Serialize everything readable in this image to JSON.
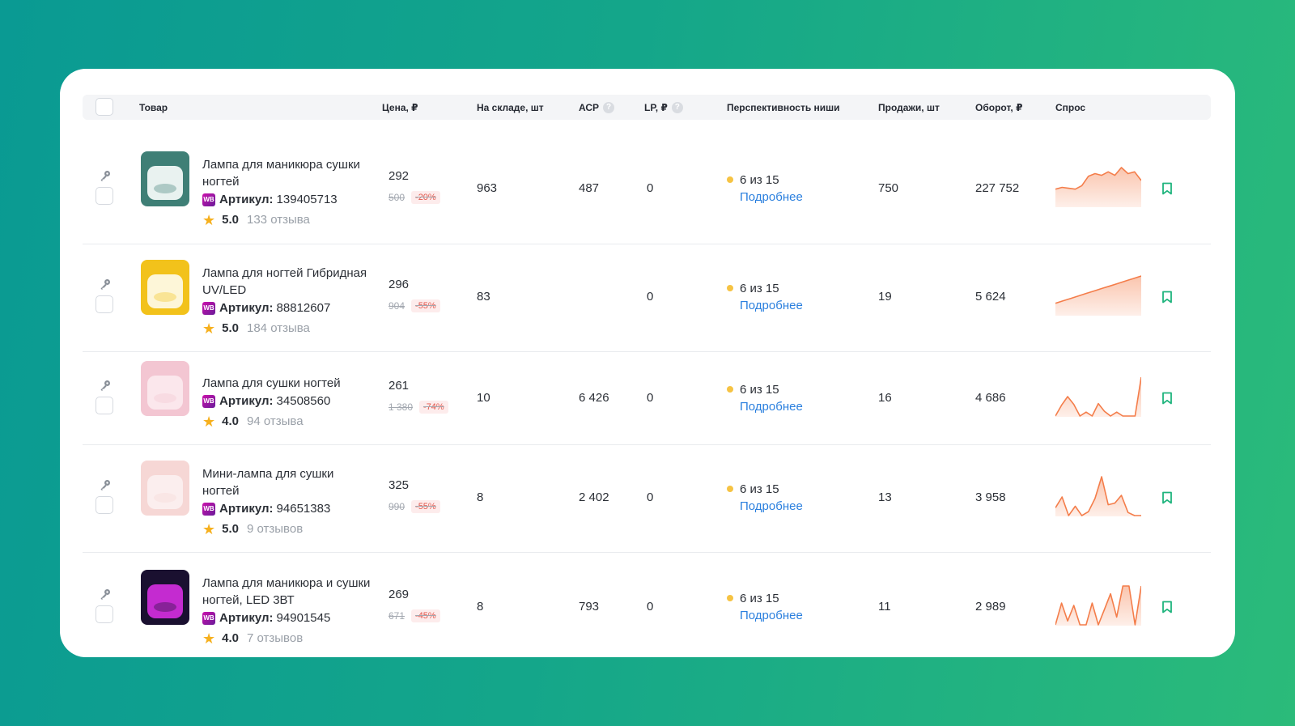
{
  "table": {
    "columns": {
      "product": "Товар",
      "price": "Цена, ₽",
      "stock": "На складе, шт",
      "acp": "АСР",
      "lp": "LP, ₽",
      "niche": "Перспективность ниши",
      "sales": "Продажи, шт",
      "turnover": "Оборот, ₽",
      "demand": "Спрос"
    },
    "help_glyph": "?",
    "wb_badge": "WB",
    "article_label": "Артикул:",
    "more_label": "Подробнее",
    "rows": [
      {
        "name": "Лампа для маникюра сушки ногтей",
        "article": "139405713",
        "rating": "5.0",
        "reviews": "133 отзыва",
        "price": "292",
        "old_price": "500",
        "discount": "-20%",
        "stock": "963",
        "acp": "487",
        "lp": "0",
        "niche": "6 из 15",
        "sales": "750",
        "turnover": "227 752",
        "demand": [
          20,
          22,
          21,
          20,
          24,
          35,
          38,
          36,
          40,
          36,
          45,
          38,
          40,
          30
        ]
      },
      {
        "name": "Лампа для ногтей Гибридная UV/LED",
        "article": "88812607",
        "rating": "5.0",
        "reviews": "184 отзыва",
        "price": "296",
        "old_price": "904",
        "discount": "-55%",
        "stock": "83",
        "acp": "",
        "lp": "0",
        "niche": "6 из 15",
        "sales": "19",
        "turnover": "5 624",
        "demand": [
          14,
          17,
          20,
          23,
          26,
          29,
          32,
          35,
          38,
          41,
          44,
          47
        ]
      },
      {
        "name": "Лампа для сушки ногтей",
        "article": "34508560",
        "rating": "4.0",
        "reviews": "94 отзыва",
        "price": "261",
        "old_price": "1 380",
        "discount": "-74%",
        "stock": "10",
        "acp": "6 426",
        "lp": "0",
        "niche": "6 из 15",
        "sales": "16",
        "turnover": "4 686",
        "demand": [
          0,
          14,
          25,
          15,
          0,
          5,
          0,
          16,
          6,
          0,
          5,
          0,
          0,
          0,
          50
        ]
      },
      {
        "name": "Мини-лампа для сушки ногтей",
        "article": "94651383",
        "rating": "5.0",
        "reviews": "9 отзывов",
        "price": "325",
        "old_price": "990",
        "discount": "-55%",
        "stock": "8",
        "acp": "2 402",
        "lp": "0",
        "niche": "6 из 15",
        "sales": "13",
        "turnover": "3 958",
        "demand": [
          10,
          24,
          0,
          12,
          0,
          5,
          22,
          50,
          14,
          16,
          26,
          4,
          0,
          0
        ]
      },
      {
        "name": "Лампа для маникюра и сушки ногтей, LED 3ВТ",
        "article": "94901545",
        "rating": "4.0",
        "reviews": "7 отзывов",
        "price": "269",
        "old_price": "671",
        "discount": "-45%",
        "stock": "8",
        "acp": "793",
        "lp": "0",
        "niche": "6 из 15",
        "sales": "11",
        "turnover": "2 989",
        "demand": [
          0,
          28,
          5,
          25,
          0,
          0,
          28,
          0,
          20,
          40,
          10,
          50,
          50,
          0,
          50
        ]
      }
    ]
  },
  "colors": {
    "accent_link": "#2a7fde",
    "spark_line": "#f47d4a",
    "bookmark": "#1fb47d",
    "niche_dot": "#f6c343",
    "discount_text": "#e2574c"
  }
}
